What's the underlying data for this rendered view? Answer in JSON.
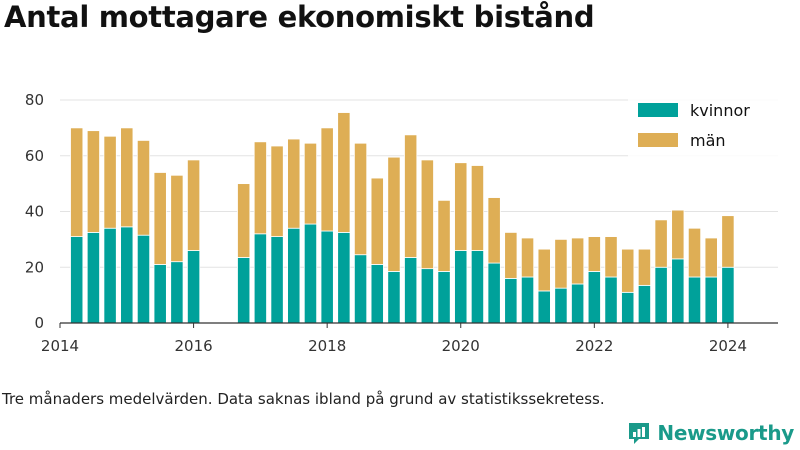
{
  "title": "Antal mottagare ekonomiskt bistånd",
  "caption": "Tre månaders medelvärden. Data saknas ibland på grund av statistikssekretess.",
  "brand": {
    "name": "Newsworthy",
    "icon": "newsworthy-logo-icon",
    "color": "#1a9a8a"
  },
  "chart_data": {
    "type": "bar",
    "stacked": true,
    "title": "Antal mottagare ekonomiskt bistånd",
    "xlabel": "",
    "ylabel": "",
    "ylim": [
      0,
      80
    ],
    "xlim": [
      2014.0,
      2024.75
    ],
    "y_ticks": [
      0,
      20,
      40,
      60,
      80
    ],
    "x_ticks": [
      2014,
      2016,
      2018,
      2020,
      2022,
      2024
    ],
    "grid": "horizontal",
    "legend_position": "top-right",
    "x": [
      2014.25,
      2014.5,
      2014.75,
      2015.0,
      2015.25,
      2015.5,
      2015.75,
      2016.0,
      2016.75,
      2017.0,
      2017.25,
      2017.5,
      2017.75,
      2018.0,
      2018.25,
      2018.5,
      2018.75,
      2019.0,
      2019.25,
      2019.5,
      2019.75,
      2020.0,
      2020.25,
      2020.5,
      2020.75,
      2021.0,
      2021.25,
      2021.5,
      2021.75,
      2022.0,
      2022.25,
      2022.5,
      2022.75,
      2023.0,
      2023.25,
      2023.5,
      2023.75,
      2024.0
    ],
    "series": [
      {
        "name": "kvinnor",
        "color": "#00a19a",
        "values": [
          31,
          32.5,
          34,
          34.5,
          31.5,
          21,
          22,
          26,
          23.5,
          32,
          31,
          34,
          35.5,
          33,
          32.5,
          24.5,
          21,
          18.5,
          23.5,
          19.5,
          18.5,
          26,
          26,
          21.5,
          16,
          16.5,
          11.5,
          12.5,
          14,
          18.5,
          16.5,
          11,
          13.5,
          20,
          23,
          16.5,
          16.5,
          20
        ]
      },
      {
        "name": "män",
        "color": "#deae55",
        "values": [
          39,
          36.5,
          33,
          35.5,
          34,
          33,
          31,
          32.5,
          26.5,
          33,
          32.5,
          32,
          29,
          37,
          43,
          40,
          31,
          41,
          44,
          39,
          25.5,
          31.5,
          30.5,
          23.5,
          16.5,
          14,
          15,
          17.5,
          16.5,
          12.5,
          14.5,
          15.5,
          13,
          17,
          17.5,
          17.5,
          14,
          18.5
        ]
      }
    ]
  }
}
